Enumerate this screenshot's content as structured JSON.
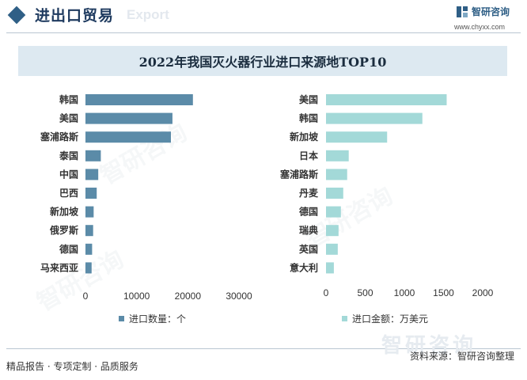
{
  "header": {
    "title": "进出口贸易",
    "watermark": "Export",
    "brand_name": "智研咨询",
    "brand_url": "www.chyxx.com"
  },
  "chart_title": "2022年我国灭火器行业进口来源地TOP10",
  "colors": {
    "left_bar": "#5b8ba8",
    "right_bar": "#a3d9d8",
    "header_accent": "#2f5f86"
  },
  "chart_data": [
    {
      "type": "bar",
      "orientation": "horizontal",
      "categories": [
        "韩国",
        "美国",
        "塞浦路斯",
        "泰国",
        "中国",
        "巴西",
        "新加坡",
        "俄罗斯",
        "德国",
        "马来西亚"
      ],
      "values": [
        21000,
        17000,
        16700,
        3000,
        2500,
        2200,
        1600,
        1500,
        1300,
        1200
      ],
      "series_name": "进口数量：个",
      "xlim": [
        0,
        30000
      ],
      "xticks": [
        "0",
        "10000",
        "20000",
        "30000"
      ],
      "xtick_values": [
        0,
        10000,
        20000,
        30000
      ],
      "legend": "bottom"
    },
    {
      "type": "bar",
      "orientation": "horizontal",
      "categories": [
        "美国",
        "韩国",
        "新加坡",
        "日本",
        "塞浦路斯",
        "丹麦",
        "德国",
        "瑞典",
        "英国",
        "意大利"
      ],
      "values": [
        1540,
        1230,
        780,
        290,
        270,
        220,
        190,
        160,
        150,
        100
      ],
      "series_name": "进口金额：万美元",
      "xlim": [
        0,
        2000
      ],
      "xticks": [
        "0",
        "500",
        "1000",
        "1500",
        "2000"
      ],
      "xtick_values": [
        0,
        500,
        1000,
        1500,
        2000
      ],
      "legend": "bottom"
    }
  ],
  "footer": {
    "left": "精品报告 · 专项定制 · 品质服务",
    "right": "资料来源：智研咨询整理",
    "watermark": "智研咨询"
  }
}
